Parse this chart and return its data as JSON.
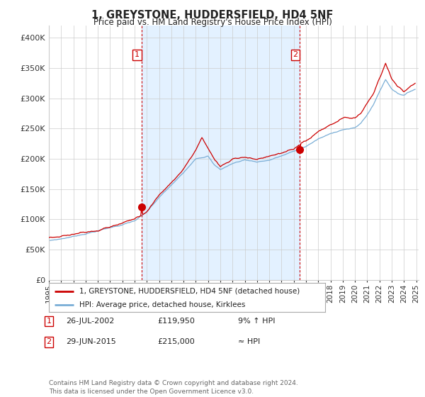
{
  "title": "1, GREYSTONE, HUDDERSFIELD, HD4 5NF",
  "subtitle": "Price paid vs. HM Land Registry's House Price Index (HPI)",
  "yticks": [
    0,
    50000,
    100000,
    150000,
    200000,
    250000,
    300000,
    350000,
    400000
  ],
  "ytick_labels": [
    "£0",
    "£50K",
    "£100K",
    "£150K",
    "£200K",
    "£250K",
    "£300K",
    "£350K",
    "£400K"
  ],
  "legend_line1": "1, GREYSTONE, HUDDERSFIELD, HD4 5NF (detached house)",
  "legend_line2": "HPI: Average price, detached house, Kirklees",
  "sale1_date": "26-JUL-2002",
  "sale1_price": "£119,950",
  "sale1_hpi": "9% ↑ HPI",
  "sale2_date": "29-JUN-2015",
  "sale2_price": "£215,000",
  "sale2_hpi": "≈ HPI",
  "footer": "Contains HM Land Registry data © Crown copyright and database right 2024.\nThis data is licensed under the Open Government Licence v3.0.",
  "hpi_color": "#7aaed6",
  "hpi_fill_color": "#ddeeff",
  "price_color": "#cc0000",
  "vline_color": "#cc0000",
  "background_color": "#ffffff",
  "grid_color": "#cccccc",
  "sale1_x_year": 2002.56,
  "sale2_x_year": 2015.49,
  "sale1_y": 119950,
  "sale2_y": 215000,
  "xlim_left": 1995.3,
  "xlim_right": 2025.2
}
